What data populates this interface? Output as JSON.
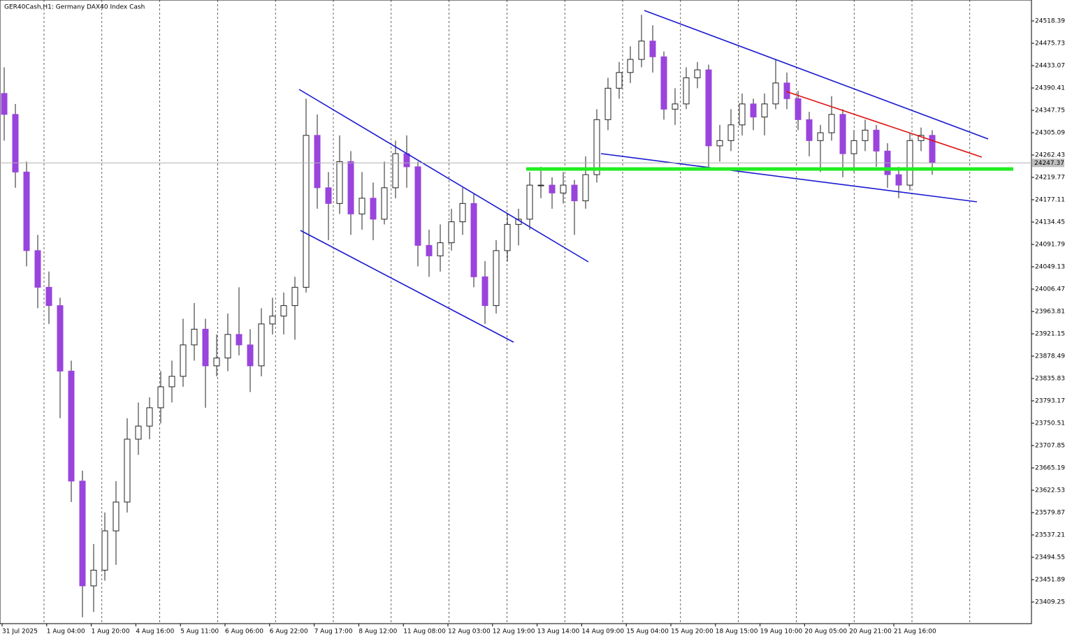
{
  "chart_data": {
    "type": "candlestick",
    "title": "GER40Cash,H1:  Germany DAX40 Index Cash",
    "up_color": "#ffffff",
    "down_color": "#9944dd",
    "wick_color": "#222222",
    "current_price": 24247.37,
    "ylim": [
      23367.9,
      24558.4
    ],
    "yticks": [
      24518.39,
      24475.73,
      24433.07,
      24390.41,
      24347.75,
      24305.09,
      24262.43,
      24219.77,
      24177.11,
      24134.45,
      24091.79,
      24049.13,
      24006.47,
      23963.81,
      23921.15,
      23878.49,
      23835.83,
      23793.17,
      23750.51,
      23707.85,
      23665.19,
      23622.53,
      23579.87,
      23537.21,
      23494.55,
      23451.89,
      23409.25
    ],
    "xticks": [
      "31 Jul 2025",
      "1 Aug 04:00",
      "1 Aug 20:00",
      "4 Aug 16:00",
      "5 Aug 11:00",
      "6 Aug 06:00",
      "6 Aug 22:00",
      "7 Aug 17:00",
      "8 Aug 12:00",
      "11 Aug 08:00",
      "12 Aug 03:00",
      "12 Aug 19:00",
      "13 Aug 14:00",
      "14 Aug 09:00",
      "15 Aug 04:00",
      "15 Aug 20:00",
      "18 Aug 15:00",
      "19 Aug 10:00",
      "20 Aug 05:00",
      "20 Aug 21:00",
      "21 Aug 16:00"
    ],
    "ohlc": [
      [
        24380,
        24430,
        24290,
        24340
      ],
      [
        24340,
        24360,
        24200,
        24230
      ],
      [
        24230,
        24250,
        24050,
        24080
      ],
      [
        24080,
        24110,
        23970,
        24010
      ],
      [
        24010,
        24040,
        23940,
        23975
      ],
      [
        23975,
        23990,
        23760,
        23850
      ],
      [
        23850,
        23870,
        23600,
        23640
      ],
      [
        23640,
        23660,
        23380,
        23440
      ],
      [
        23440,
        23520,
        23390,
        23470
      ],
      [
        23470,
        23580,
        23450,
        23545
      ],
      [
        23545,
        23640,
        23480,
        23600
      ],
      [
        23600,
        23760,
        23580,
        23720
      ],
      [
        23720,
        23790,
        23690,
        23745
      ],
      [
        23745,
        23800,
        23720,
        23780
      ],
      [
        23780,
        23850,
        23750,
        23820
      ],
      [
        23820,
        23870,
        23790,
        23840
      ],
      [
        23840,
        23950,
        23820,
        23900
      ],
      [
        23900,
        23980,
        23870,
        23930
      ],
      [
        23930,
        23950,
        23780,
        23860
      ],
      [
        23860,
        23920,
        23840,
        23875
      ],
      [
        23875,
        23960,
        23850,
        23920
      ],
      [
        23920,
        24010,
        23880,
        23900
      ],
      [
        23900,
        23930,
        23810,
        23860
      ],
      [
        23860,
        23970,
        23840,
        23940
      ],
      [
        23940,
        23990,
        23920,
        23955
      ],
      [
        23955,
        24000,
        23920,
        23975
      ],
      [
        23975,
        24030,
        23910,
        24010
      ],
      [
        24010,
        24370,
        24000,
        24300
      ],
      [
        24300,
        24340,
        24160,
        24200
      ],
      [
        24200,
        24230,
        24100,
        24170
      ],
      [
        24170,
        24300,
        24150,
        24250
      ],
      [
        24250,
        24270,
        24110,
        24150
      ],
      [
        24150,
        24230,
        24120,
        24180
      ],
      [
        24180,
        24210,
        24100,
        24140
      ],
      [
        24140,
        24250,
        24130,
        24200
      ],
      [
        24200,
        24290,
        24180,
        24265
      ],
      [
        24265,
        24300,
        24200,
        24240
      ],
      [
        24240,
        24250,
        24050,
        24090
      ],
      [
        24090,
        24120,
        24030,
        24070
      ],
      [
        24070,
        24130,
        24040,
        24095
      ],
      [
        24095,
        24160,
        24080,
        24135
      ],
      [
        24135,
        24200,
        24110,
        24170
      ],
      [
        24170,
        24190,
        24010,
        24030
      ],
      [
        24030,
        24060,
        23940,
        23975
      ],
      [
        23975,
        24100,
        23960,
        24080
      ],
      [
        24080,
        24150,
        24060,
        24130
      ],
      [
        24130,
        24160,
        24090,
        24140
      ],
      [
        24140,
        24230,
        24120,
        24205
      ],
      [
        24205,
        24240,
        24180,
        24205
      ],
      [
        24205,
        24220,
        24160,
        24190
      ],
      [
        24190,
        24230,
        24170,
        24205
      ],
      [
        24205,
        24215,
        24110,
        24175
      ],
      [
        24175,
        24260,
        24160,
        24225
      ],
      [
        24225,
        24350,
        24210,
        24330
      ],
      [
        24330,
        24410,
        24310,
        24390
      ],
      [
        24390,
        24440,
        24370,
        24420
      ],
      [
        24420,
        24470,
        24400,
        24445
      ],
      [
        24445,
        24530,
        24430,
        24480
      ],
      [
        24480,
        24510,
        24420,
        24450
      ],
      [
        24450,
        24460,
        24330,
        24350
      ],
      [
        24350,
        24390,
        24320,
        24360
      ],
      [
        24360,
        24430,
        24350,
        24410
      ],
      [
        24410,
        24440,
        24390,
        24425
      ],
      [
        24425,
        24435,
        24240,
        24280
      ],
      [
        24280,
        24320,
        24250,
        24290
      ],
      [
        24290,
        24350,
        24270,
        24320
      ],
      [
        24320,
        24380,
        24300,
        24360
      ],
      [
        24360,
        24370,
        24310,
        24335
      ],
      [
        24335,
        24380,
        24300,
        24360
      ],
      [
        24360,
        24445,
        24350,
        24400
      ],
      [
        24400,
        24420,
        24350,
        24370
      ],
      [
        24370,
        24385,
        24310,
        24330
      ],
      [
        24330,
        24345,
        24260,
        24290
      ],
      [
        24290,
        24320,
        24230,
        24305
      ],
      [
        24305,
        24375,
        24290,
        24340
      ],
      [
        24340,
        24350,
        24220,
        24265
      ],
      [
        24265,
        24310,
        24230,
        24290
      ],
      [
        24290,
        24330,
        24270,
        24310
      ],
      [
        24310,
        24320,
        24240,
        24270
      ],
      [
        24270,
        24285,
        24200,
        24225
      ],
      [
        24225,
        24240,
        24180,
        24205
      ],
      [
        24205,
        24305,
        24195,
        24290
      ],
      [
        24290,
        24315,
        24270,
        24300
      ],
      [
        24300,
        24310,
        24225,
        24247.37
      ]
    ]
  }
}
